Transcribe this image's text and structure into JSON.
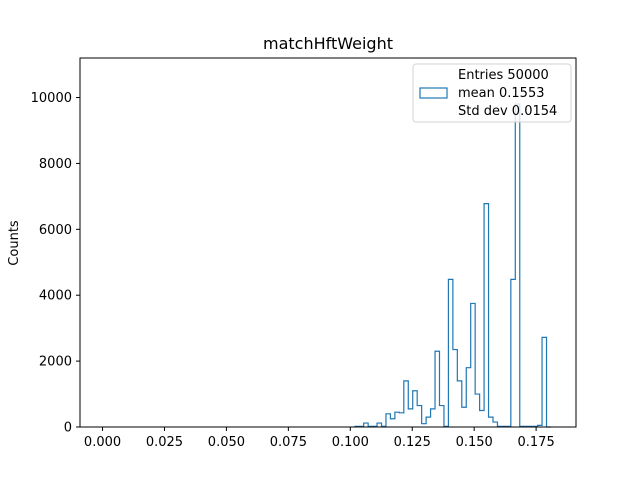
{
  "chart_data": {
    "type": "histogram",
    "title": "matchHftWeight",
    "xlabel": "",
    "ylabel": "Counts",
    "xlim": [
      -0.0091,
      0.1911
    ],
    "ylim": [
      0,
      11200
    ],
    "xticks": [
      0.0,
      0.025,
      0.05,
      0.075,
      0.1,
      0.125,
      0.15,
      0.175
    ],
    "xtick_labels": [
      "0.000",
      "0.025",
      "0.050",
      "0.075",
      "0.100",
      "0.125",
      "0.150",
      "0.175"
    ],
    "yticks": [
      0,
      2000,
      4000,
      6000,
      8000,
      10000
    ],
    "ytick_labels": [
      "0",
      "2000",
      "4000",
      "6000",
      "8000",
      "10000"
    ],
    "bin_edges": [
      0.1019,
      0.1036,
      0.1054,
      0.1072,
      0.109,
      0.1108,
      0.1126,
      0.1144,
      0.1162,
      0.118,
      0.1198,
      0.1216,
      0.1234,
      0.1252,
      0.127,
      0.1288,
      0.1306,
      0.1324,
      0.1342,
      0.136,
      0.1378,
      0.1396,
      0.1414,
      0.1432,
      0.145,
      0.1468,
      0.1486,
      0.1504,
      0.1522,
      0.154,
      0.1558,
      0.1576,
      0.1594,
      0.1612,
      0.163,
      0.1648,
      0.1666,
      0.1684,
      0.1702,
      0.172,
      0.1738,
      0.1756,
      0.1774,
      0.1792,
      0.181
    ],
    "counts": [
      20,
      20,
      120,
      20,
      20,
      120,
      20,
      400,
      250,
      450,
      430,
      1400,
      550,
      1100,
      650,
      100,
      300,
      550,
      2300,
      650,
      20,
      4480,
      2350,
      1400,
      600,
      1800,
      3750,
      1000,
      500,
      6780,
      300,
      150,
      20,
      20,
      20,
      4480,
      9800,
      20,
      20,
      20,
      20,
      50,
      2720,
      0
    ],
    "series": [
      {
        "name": "",
        "color": "#1f77b4"
      }
    ],
    "legend": {
      "placement": "top-right",
      "lines": [
        "Entries 50000",
        "mean 0.1553",
        "Std dev 0.0154"
      ]
    },
    "grid": false
  }
}
